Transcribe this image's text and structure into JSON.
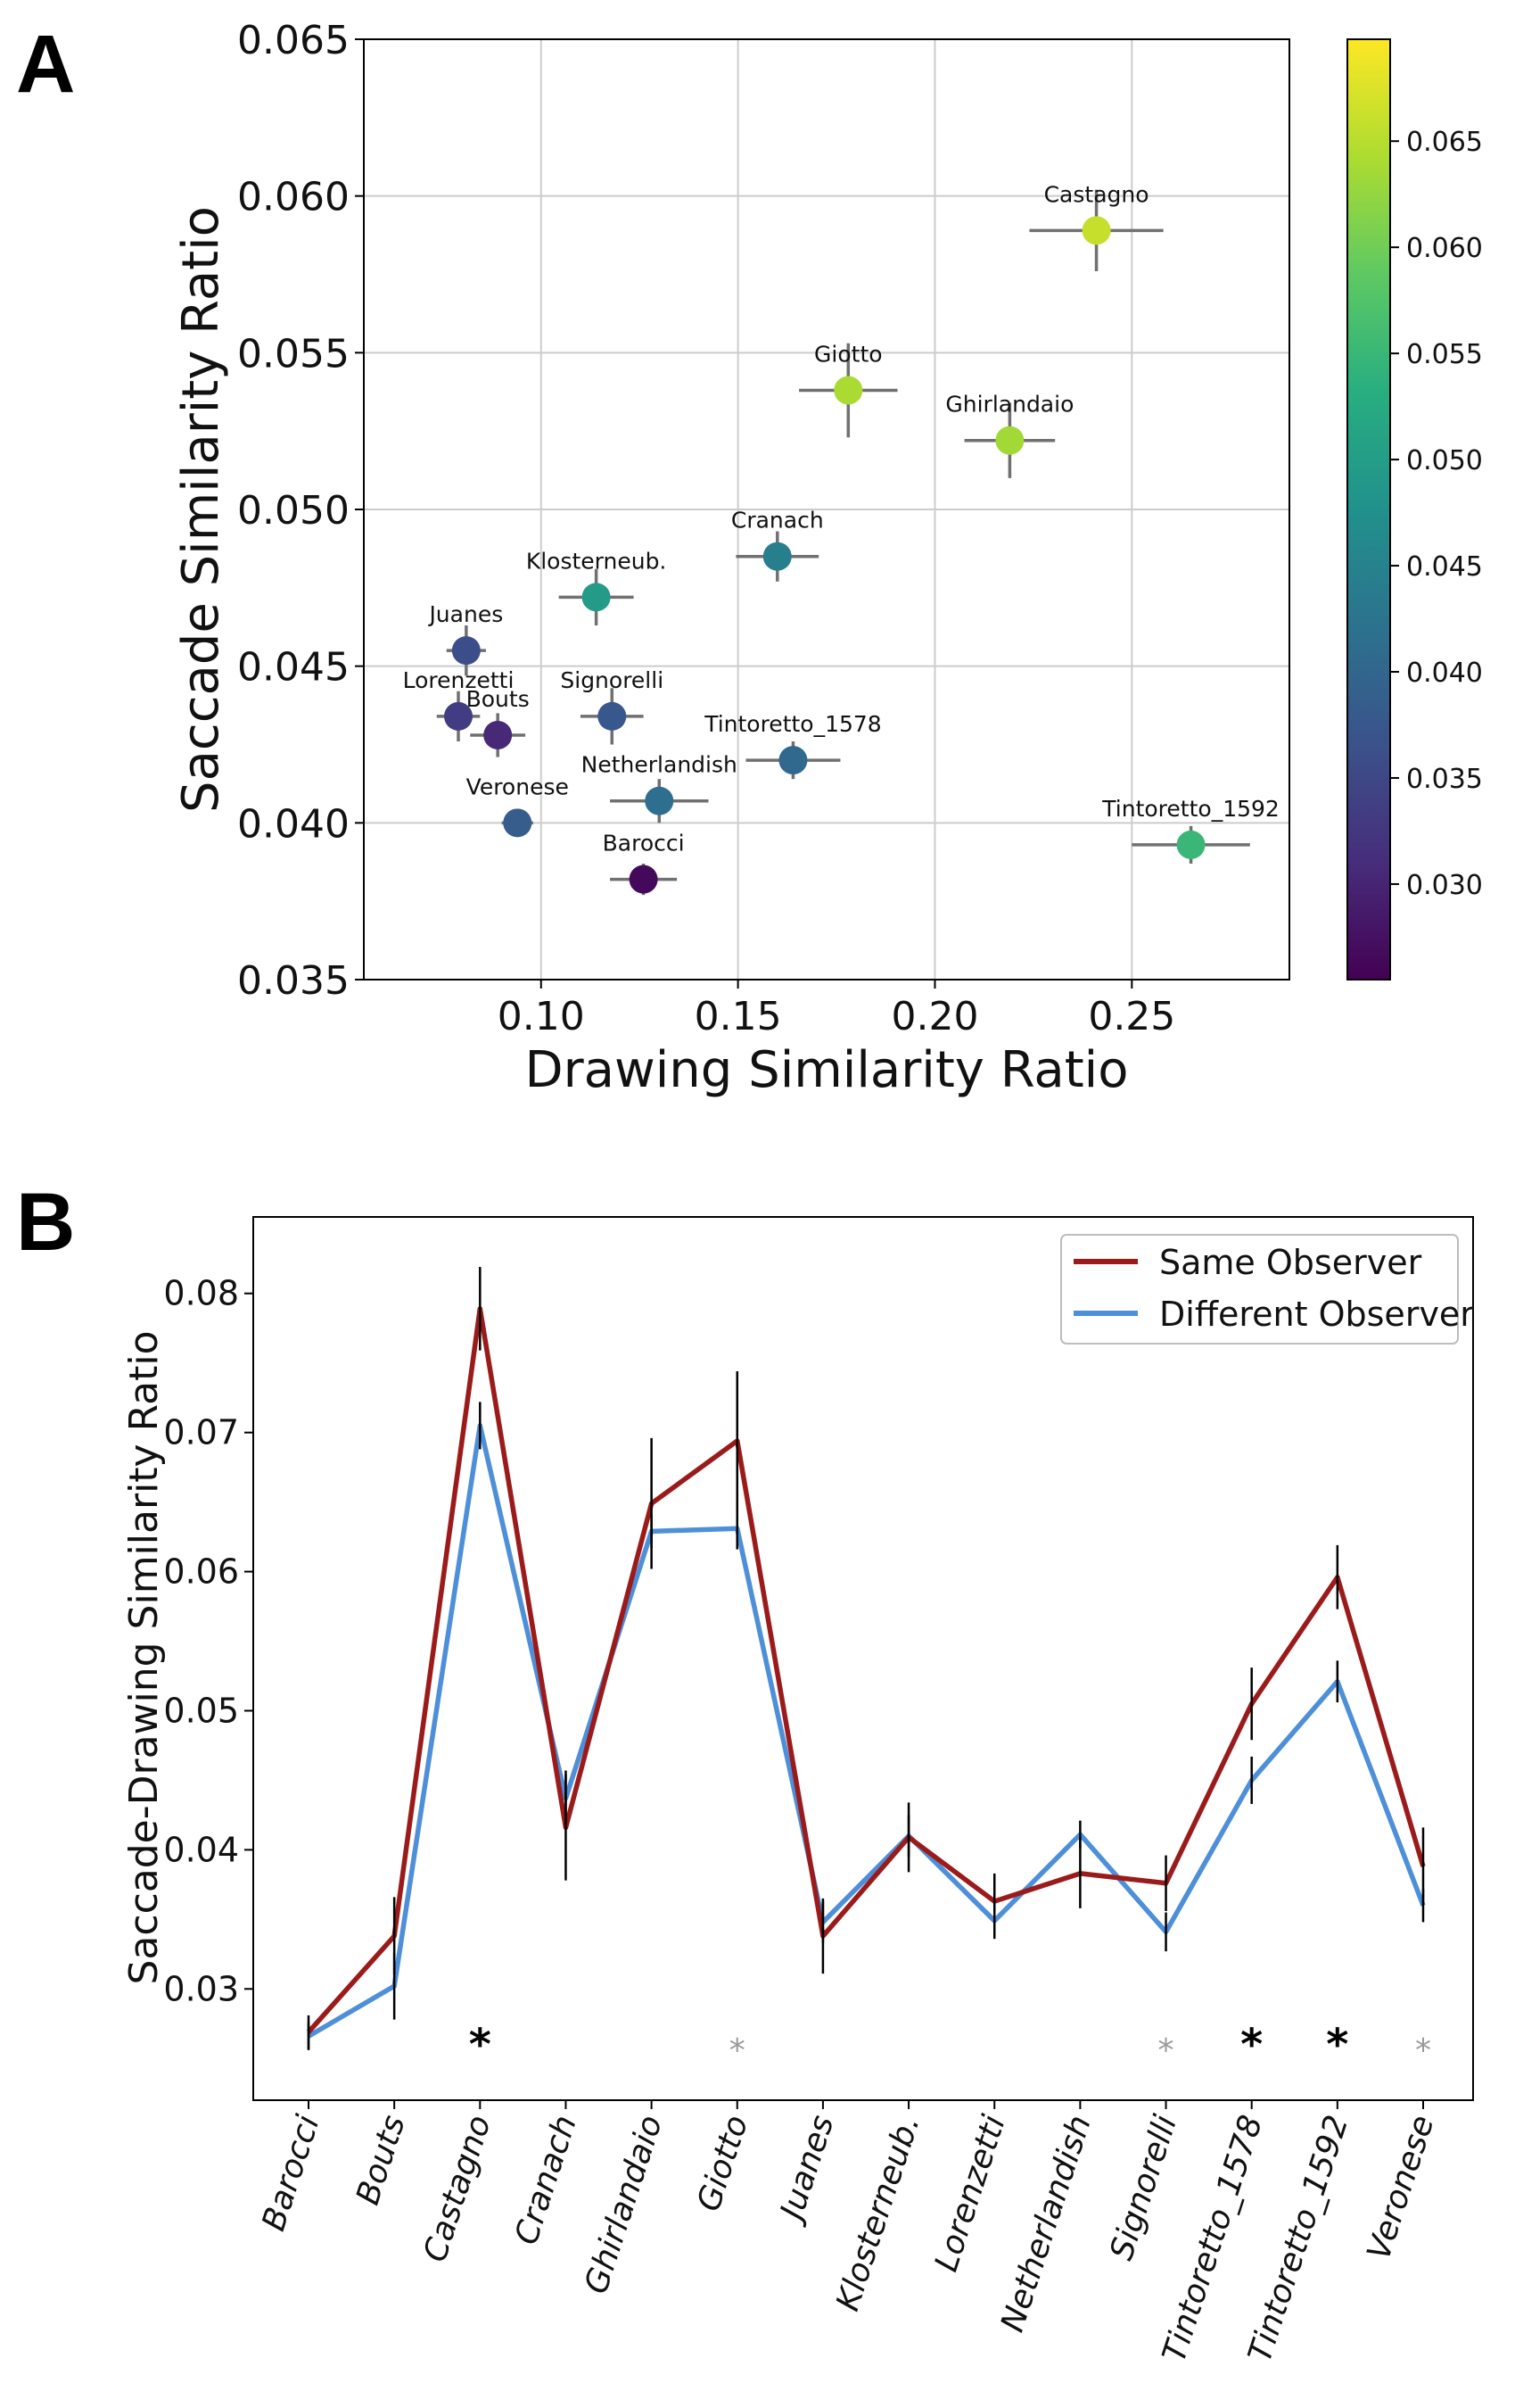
{
  "panels": {
    "a_label": "A",
    "b_label": "B"
  },
  "colors": {
    "same_observer": "#9b1a1a",
    "different_observer": "#4d8fd8",
    "errorbar_a": "#707070",
    "errorbar_b": "#000000",
    "grid": "#cccccc",
    "sig_dark": "#000000",
    "sig_light": "#9a9a9a"
  },
  "chart_data": [
    {
      "id": "panel-a",
      "type": "scatter",
      "title": "",
      "xlabel": "Drawing Similarity Ratio",
      "ylabel": "Saccade Similarity Ratio",
      "xlim": [
        0.055,
        0.29
      ],
      "ylim": [
        0.035,
        0.065
      ],
      "xticks": [
        0.1,
        0.15,
        0.2,
        0.25
      ],
      "xtick_labels": [
        "0.10",
        "0.15",
        "0.20",
        "0.25"
      ],
      "yticks": [
        0.035,
        0.04,
        0.045,
        0.05,
        0.055,
        0.06,
        0.065
      ],
      "ytick_labels": [
        "0.035",
        "0.040",
        "0.045",
        "0.050",
        "0.055",
        "0.060",
        "0.065"
      ],
      "grid": true,
      "colormap": "viridis",
      "colorbar": {
        "range": [
          0.0255,
          0.0698
        ],
        "ticks": [
          0.03,
          0.035,
          0.04,
          0.045,
          0.05,
          0.055,
          0.06,
          0.065
        ],
        "tick_labels": [
          "0.030",
          "0.035",
          "0.040",
          "0.045",
          "0.050",
          "0.055",
          "0.060",
          "0.065"
        ]
      },
      "points": [
        {
          "name": "Castagno",
          "x": 0.241,
          "y": 0.0589,
          "xerr": 0.017,
          "yerr": 0.0013,
          "c": 0.066
        },
        {
          "name": "Giotto",
          "x": 0.178,
          "y": 0.0538,
          "xerr": 0.0125,
          "yerr": 0.0015,
          "c": 0.064
        },
        {
          "name": "Ghirlandaio",
          "x": 0.219,
          "y": 0.0522,
          "xerr": 0.0115,
          "yerr": 0.0012,
          "c": 0.0635
        },
        {
          "name": "Cranach",
          "x": 0.16,
          "y": 0.0485,
          "xerr": 0.0105,
          "yerr": 0.0008,
          "c": 0.0445
        },
        {
          "name": "Klosterneub.",
          "x": 0.114,
          "y": 0.0472,
          "xerr": 0.0095,
          "yerr": 0.0009,
          "c": 0.0495
        },
        {
          "name": "Juanes",
          "x": 0.081,
          "y": 0.0455,
          "xerr": 0.005,
          "yerr": 0.0008,
          "c": 0.036
        },
        {
          "name": "Lorenzetti",
          "x": 0.079,
          "y": 0.0434,
          "xerr": 0.0055,
          "yerr": 0.0008,
          "c": 0.0335
        },
        {
          "name": "Bouts",
          "x": 0.089,
          "y": 0.0428,
          "xerr": 0.007,
          "yerr": 0.0007,
          "c": 0.0305
        },
        {
          "name": "Signorelli",
          "x": 0.118,
          "y": 0.0434,
          "xerr": 0.008,
          "yerr": 0.0009,
          "c": 0.0375
        },
        {
          "name": "Tintoretto_1578",
          "x": 0.164,
          "y": 0.042,
          "xerr": 0.012,
          "yerr": 0.0006,
          "c": 0.0405
        },
        {
          "name": "Netherlandish",
          "x": 0.13,
          "y": 0.0407,
          "xerr": 0.0125,
          "yerr": 0.0007,
          "c": 0.0415
        },
        {
          "name": "Veronese",
          "x": 0.094,
          "y": 0.04,
          "xerr": 0.004,
          "yerr": 0.0004,
          "c": 0.0385
        },
        {
          "name": "Barocci",
          "x": 0.126,
          "y": 0.0382,
          "xerr": 0.0085,
          "yerr": 0.0005,
          "c": 0.0265
        },
        {
          "name": "Tintoretto_1592",
          "x": 0.265,
          "y": 0.0393,
          "xerr": 0.015,
          "yerr": 0.0006,
          "c": 0.055
        }
      ]
    },
    {
      "id": "panel-b",
      "type": "line",
      "title": "",
      "xlabel": "",
      "ylabel": "Saccade-Drawing Similarity Ratio",
      "ylim": [
        0.022,
        0.0855
      ],
      "yticks": [
        0.03,
        0.04,
        0.05,
        0.06,
        0.07,
        0.08
      ],
      "ytick_labels": [
        "0.03",
        "0.04",
        "0.05",
        "0.06",
        "0.07",
        "0.08"
      ],
      "grid": false,
      "legend": "top-right",
      "categories": [
        "Barocci",
        "Bouts",
        "Castagno",
        "Cranach",
        "Ghirlandaio",
        "Giotto",
        "Juanes",
        "Klosterneub.",
        "Lorenzetti",
        "Netherlandish",
        "Signorelli",
        "Tintoretto_1578",
        "Tintoretto_1592",
        "Veronese"
      ],
      "series": [
        {
          "name": "Same Observer",
          "values": [
            0.0269,
            0.0338,
            0.0789,
            0.0416,
            0.0649,
            0.0694,
            0.0338,
            0.0409,
            0.0363,
            0.0383,
            0.0376,
            0.0505,
            0.0596,
            0.0388
          ],
          "errors": [
            0.0012,
            0.0028,
            0.003,
            0.0038,
            0.0047,
            0.005,
            0.0027,
            0.0025,
            0.002,
            0.0025,
            0.002,
            0.0026,
            0.0023,
            0.0028
          ]
        },
        {
          "name": "Different Observer",
          "values": [
            0.0266,
            0.0302,
            0.0705,
            0.0437,
            0.0629,
            0.0631,
            0.0348,
            0.041,
            0.0349,
            0.0411,
            0.0341,
            0.045,
            0.0521,
            0.036
          ],
          "errors": [
            0.001,
            0.0024,
            0.0017,
            0.002,
            0.0012,
            0.0015,
            0.0015,
            0.0015,
            0.0013,
            0.001,
            0.0014,
            0.0017,
            0.0015,
            0.0012
          ]
        }
      ],
      "significance": [
        "",
        "",
        "*",
        "",
        "",
        "*",
        "",
        "",
        "",
        "",
        "*",
        "*",
        "*",
        "*"
      ],
      "significance_strength": [
        "",
        "",
        "strong",
        "",
        "",
        "weak",
        "",
        "",
        "",
        "",
        "weak",
        "strong",
        "strong",
        "weak"
      ]
    }
  ]
}
